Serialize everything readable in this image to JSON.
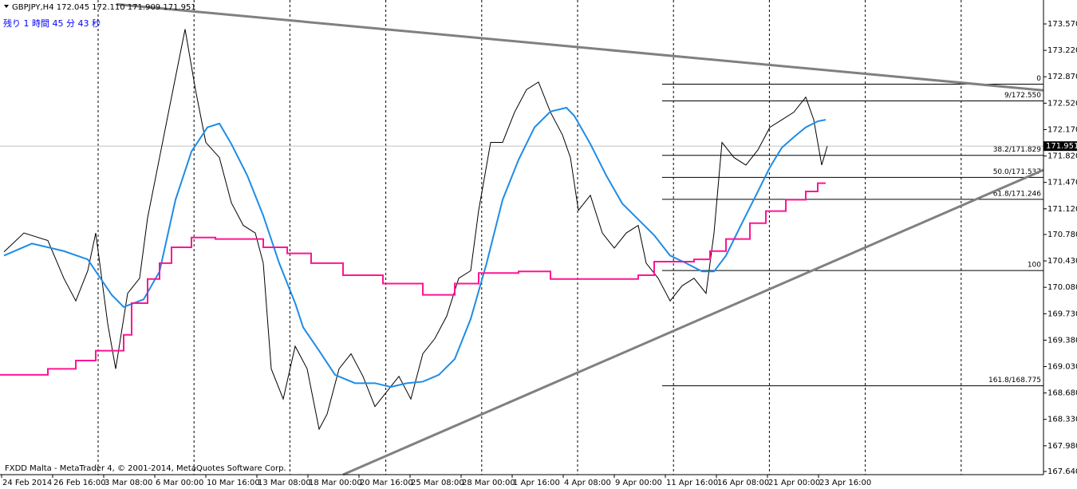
{
  "chart_data": {
    "type": "line",
    "header": "GBPJPY,H4  172.045 172.110 171.909 171.951",
    "countdown": "残り 1 時間 45 分 43 秒",
    "footer": "FXDD Malta - MetaTrader 4, © 2001-2014, MetaQuotes Software Corp.",
    "xlim": [
      -0.5,
      326.5
    ],
    "ylim": [
      167.598,
      173.887
    ],
    "yticks": [
      {
        "value": 173.57,
        "label": "173.570"
      },
      {
        "value": 173.22,
        "label": "173.220"
      },
      {
        "value": 172.87,
        "label": "172.870"
      },
      {
        "value": 172.52,
        "label": "172.520"
      },
      {
        "value": 172.17,
        "label": "172.170"
      },
      {
        "value": 171.82,
        "label": "171.820"
      },
      {
        "value": 171.47,
        "label": "171.470"
      },
      {
        "value": 171.12,
        "label": "171.120"
      },
      {
        "value": 170.78,
        "label": "170.780"
      },
      {
        "value": 170.43,
        "label": "170.430"
      },
      {
        "value": 170.08,
        "label": "170.080"
      },
      {
        "value": 169.73,
        "label": "169.730"
      },
      {
        "value": 169.38,
        "label": "169.380"
      },
      {
        "value": 169.03,
        "label": "169.030"
      },
      {
        "value": 168.68,
        "label": "168.680"
      },
      {
        "value": 168.33,
        "label": "168.330"
      },
      {
        "value": 167.98,
        "label": "167.980"
      },
      {
        "value": 167.64,
        "label": "167.640"
      }
    ],
    "xticks": [
      {
        "value": 0,
        "label": "24 Feb 2014"
      },
      {
        "value": 16,
        "label": "26 Feb 16:00"
      },
      {
        "value": 32,
        "label": "3 Mar 08:00"
      },
      {
        "value": 48,
        "label": "6 Mar 00:00"
      },
      {
        "value": 64,
        "label": "10 Mar 16:00"
      },
      {
        "value": 80,
        "label": "13 Mar 08:00"
      },
      {
        "value": 96,
        "label": "18 Mar 00:00"
      },
      {
        "value": 112,
        "label": "20 Mar 16:00"
      },
      {
        "value": 128,
        "label": "25 Mar 08:00"
      },
      {
        "value": 144,
        "label": "28 Mar 00:00"
      },
      {
        "value": 160,
        "label": "1 Apr 16:00"
      },
      {
        "value": 176,
        "label": "4 Apr 08:00"
      },
      {
        "value": 192,
        "label": "9 Apr 00:00"
      },
      {
        "value": 208,
        "label": "11 Apr 16:00"
      },
      {
        "value": 224,
        "label": "16 Apr 08:00"
      },
      {
        "value": 240,
        "label": "21 Apr 00:00"
      },
      {
        "value": 256,
        "label": "23 Apr 16:00"
      }
    ],
    "series": [
      {
        "color": "#000000",
        "width": 1,
        "x": [
          0.75,
          7,
          14.5,
          19.5,
          23.25,
          27,
          29.5,
          33.25,
          35.75,
          39.5,
          43.25,
          45.75,
          49.5,
          53.25,
          57.5,
          60.75,
          64,
          68.25,
          72,
          75.75,
          79.5,
          82,
          84.5,
          88.25,
          92,
          95.75,
          99.5,
          102,
          105.75,
          109.5,
          113.25,
          117,
          120.75,
          124.5,
          128.25,
          132,
          135.75,
          139.5,
          143.25,
          147,
          149.5,
          153.25,
          157,
          160.75,
          164.5,
          168.25,
          172,
          175.75,
          178.25,
          180.75,
          184.5,
          188.25,
          192,
          195.75,
          199.5,
          202,
          205.75,
          209.5,
          213.25,
          217,
          220.75,
          223.25,
          225.75,
          229.5,
          233.25,
          237,
          240.75,
          244.5,
          248.25,
          252,
          254.5,
          257,
          258.75
        ],
        "values": [
          170.55,
          170.8,
          170.7,
          170.2,
          169.9,
          170.3,
          170.8,
          169.6,
          169.0,
          170.0,
          170.2,
          171.0,
          171.8,
          172.6,
          173.5,
          172.7,
          172.0,
          171.8,
          171.2,
          170.9,
          170.8,
          170.4,
          169.0,
          168.6,
          169.3,
          169.0,
          168.2,
          168.4,
          169.0,
          169.2,
          168.9,
          168.5,
          168.7,
          168.9,
          168.6,
          169.2,
          169.4,
          169.7,
          170.2,
          170.3,
          171.1,
          172.0,
          172.0,
          172.4,
          172.7,
          172.8,
          172.4,
          172.1,
          171.8,
          171.1,
          171.3,
          170.8,
          170.6,
          170.8,
          170.9,
          170.4,
          170.2,
          169.9,
          170.1,
          170.2,
          170.0,
          170.8,
          172.0,
          171.8,
          171.7,
          171.9,
          172.2,
          172.3,
          172.4,
          172.6,
          172.3,
          171.7,
          171.951
        ]
      },
      {
        "color": "#1e8ce6",
        "width": 2,
        "x": [
          0.75,
          9.5,
          19.5,
          27,
          34.5,
          38.25,
          44.5,
          49.5,
          54.5,
          59.5,
          64.5,
          68.25,
          72,
          77,
          82,
          87,
          92,
          94.5,
          99.5,
          104.5,
          110.75,
          117,
          122,
          127,
          132,
          137,
          142,
          147,
          152,
          157,
          162,
          167,
          172,
          177,
          179.5,
          184.5,
          189.5,
          194.5,
          199.5,
          204.5,
          209.5,
          214.5,
          219.5,
          223.25,
          227,
          232,
          237,
          240.75,
          244.5,
          248.25,
          252,
          255.75,
          258.25
        ],
        "values": [
          170.5,
          170.66,
          170.56,
          170.45,
          169.98,
          169.82,
          169.92,
          170.29,
          171.24,
          171.88,
          172.2,
          172.25,
          171.98,
          171.56,
          171.03,
          170.4,
          169.87,
          169.55,
          169.24,
          168.92,
          168.81,
          168.81,
          168.76,
          168.81,
          168.83,
          168.92,
          169.13,
          169.66,
          170.4,
          171.24,
          171.77,
          172.2,
          172.41,
          172.46,
          172.35,
          171.98,
          171.56,
          171.19,
          170.98,
          170.77,
          170.5,
          170.4,
          170.29,
          170.29,
          170.5,
          170.93,
          171.35,
          171.67,
          171.93,
          172.07,
          172.2,
          172.28,
          172.3
        ]
      },
      {
        "color": "#ff1493",
        "width": 2,
        "step": true,
        "x": [
          -0.5,
          14.5,
          23.25,
          29.5,
          38.25,
          40.75,
          45.75,
          49.5,
          53.25,
          59.5,
          67,
          82,
          89.5,
          97,
          107,
          119.5,
          132,
          142,
          149.5,
          162,
          172,
          199.5,
          204.5,
          217,
          222,
          227,
          234.5,
          239.5,
          245.75,
          252,
          255.75,
          258.25
        ],
        "values": [
          168.92,
          169.0,
          169.11,
          169.24,
          169.45,
          169.87,
          170.19,
          170.4,
          170.61,
          170.74,
          170.72,
          170.61,
          170.53,
          170.4,
          170.24,
          170.13,
          169.98,
          170.13,
          170.27,
          170.29,
          170.19,
          170.24,
          170.42,
          170.45,
          170.56,
          170.72,
          170.93,
          171.09,
          171.24,
          171.35,
          171.46,
          171.46
        ]
      }
    ],
    "trendlines": [
      {
        "color": "#808080",
        "x": [
          36,
          326.5
        ],
        "values": [
          173.83,
          172.69
        ]
      },
      {
        "color": "#808080",
        "x": [
          107,
          326.5
        ],
        "values": [
          167.598,
          171.635
        ]
      }
    ],
    "fibonacci": {
      "color": "#000000",
      "x_start": 207,
      "levels": [
        {
          "value": 172.772,
          "label": "0"
        },
        {
          "value": 172.55,
          "label": "9/172.550"
        },
        {
          "value": 171.829,
          "label": "38.2/171.829"
        },
        {
          "value": 171.537,
          "label": "50.0/171.537"
        },
        {
          "value": 171.246,
          "label": "61.8/171.246"
        },
        {
          "value": 170.302,
          "label": "100"
        },
        {
          "value": 168.775,
          "label": "161.8/168.775"
        }
      ]
    },
    "current_price": 171.951
  }
}
